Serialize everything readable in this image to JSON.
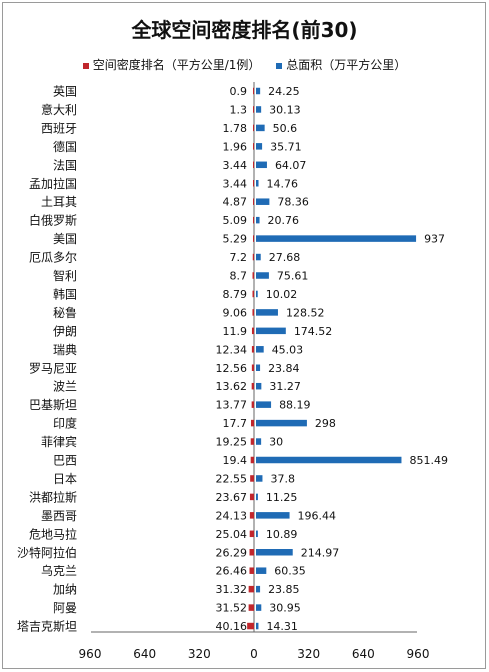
{
  "chart_data": {
    "type": "bar",
    "title": "全球空间密度排名(前30)",
    "categories": [
      "英国",
      "意大利",
      "西班牙",
      "德国",
      "法国",
      "孟加拉国",
      "土耳其",
      "白俄罗斯",
      "美国",
      "厄瓜多尔",
      "智利",
      "韩国",
      "秘鲁",
      "伊朗",
      "瑞典",
      "罗马尼亚",
      "波兰",
      "巴基斯坦",
      "印度",
      "菲律宾",
      "巴西",
      "日本",
      "洪都拉斯",
      "墨西哥",
      "危地马拉",
      "沙特阿拉伯",
      "乌克兰",
      "加纳",
      "阿曼",
      "塔吉克斯坦"
    ],
    "series": [
      {
        "name": "空间密度排名（平方公里/1例）",
        "color": "#c0262c",
        "values": [
          0.9,
          1.3,
          1.78,
          1.96,
          3.44,
          3.44,
          4.87,
          5.09,
          5.29,
          7.2,
          8.7,
          8.79,
          9.06,
          11.9,
          12.34,
          12.56,
          13.62,
          13.77,
          17.7,
          19.25,
          19.4,
          22.55,
          23.67,
          24.13,
          25.04,
          26.29,
          26.46,
          31.32,
          31.52,
          40.16
        ]
      },
      {
        "name": "总面积（万平方公里）",
        "color": "#1f6bb5",
        "values": [
          24.25,
          30.13,
          50.6,
          35.71,
          64.07,
          14.76,
          78.36,
          20.76,
          937,
          27.68,
          75.61,
          10.02,
          128.52,
          174.52,
          45.03,
          23.84,
          31.27,
          88.19,
          298,
          30,
          851.49,
          37.8,
          11.25,
          196.44,
          10.89,
          214.97,
          60.35,
          23.85,
          30.95,
          14.31
        ]
      }
    ],
    "x_ticks": [
      "960",
      "640",
      "320",
      "0",
      "320",
      "640",
      "960"
    ],
    "xlim": [
      -960,
      960
    ],
    "grid": false,
    "legend": "top"
  }
}
